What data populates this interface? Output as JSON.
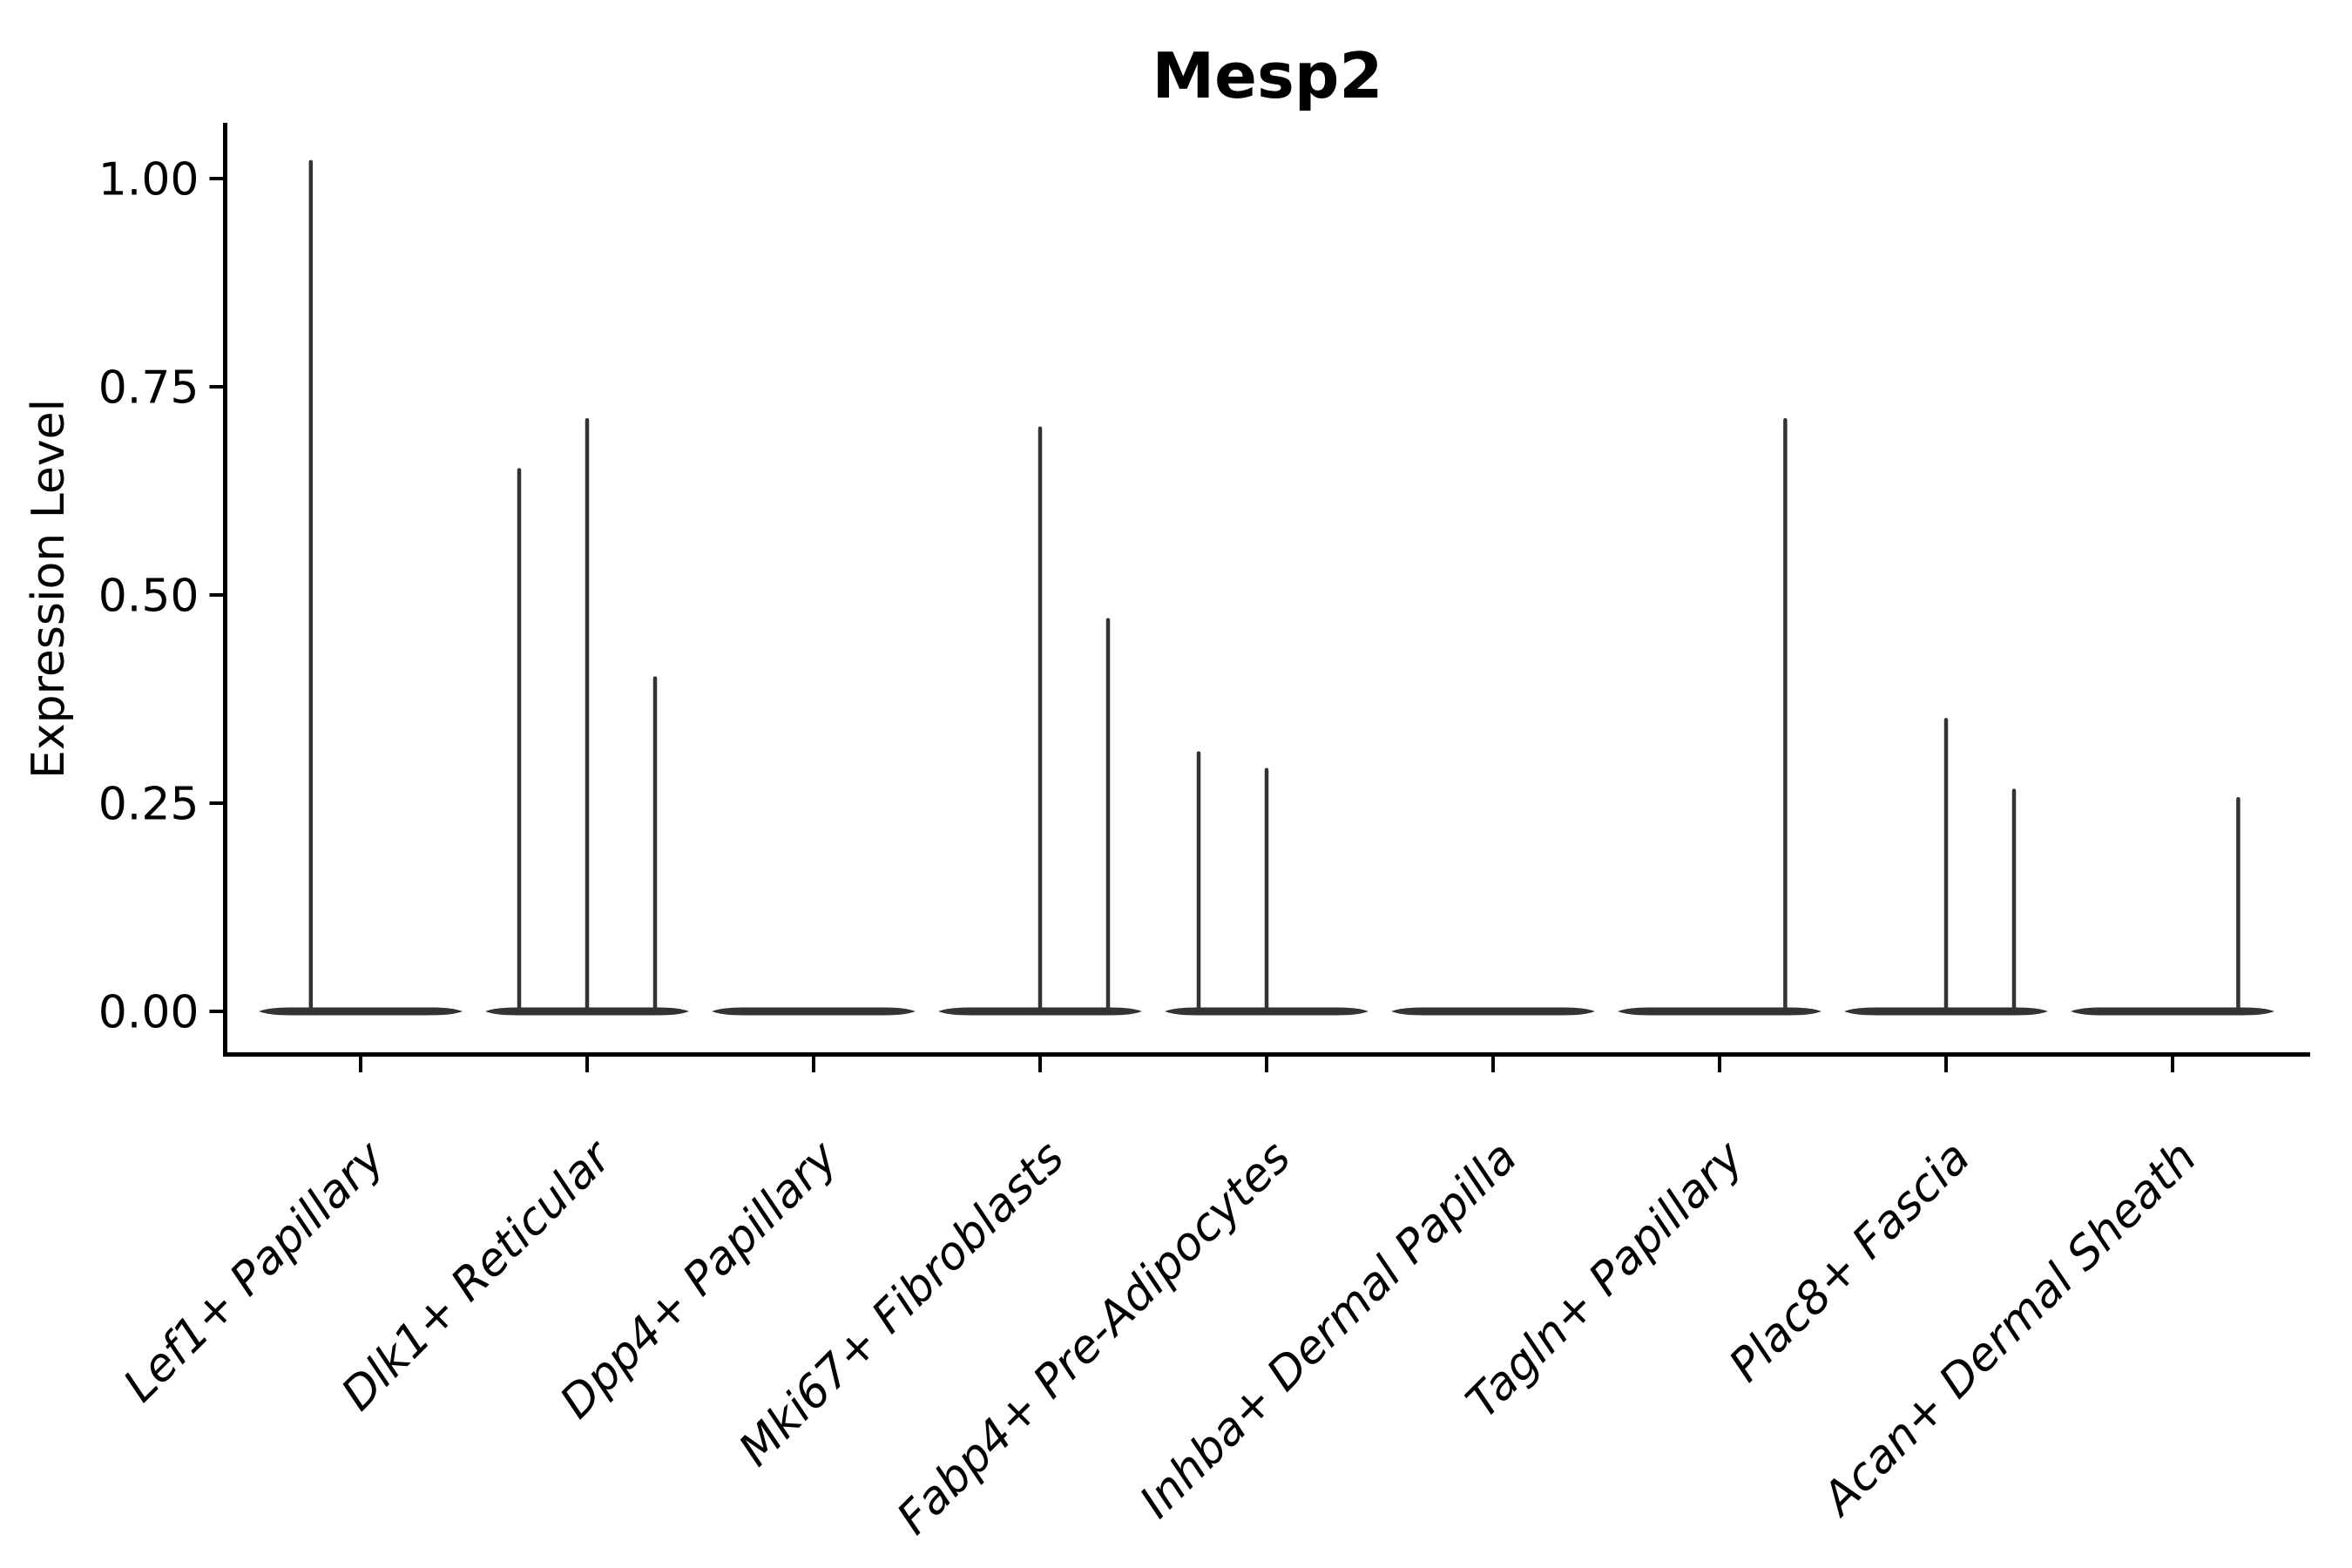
{
  "page": {
    "background": "#ffffff",
    "description": "Violin plot of gene expression per cell type; almost all density collapsed at 0 with thin vertical density spikes"
  },
  "chart_data": {
    "type": "violin",
    "title": "Mesp2",
    "xlabel": "",
    "ylabel": "Expression Level",
    "ylim": [
      -0.05,
      1.07
    ],
    "grid": false,
    "legend": false,
    "x_tick_label_style": "italic, rotated 45 degrees, right-anchored",
    "colors": {
      "violin": "#333333",
      "axis": "#000000",
      "text": "#000000",
      "background": "#ffffff"
    },
    "y_ticks": [
      {
        "value": 1.0,
        "label": "1.00"
      },
      {
        "value": 0.75,
        "label": "0.75"
      },
      {
        "value": 0.5,
        "label": "0.50"
      },
      {
        "value": 0.25,
        "label": "0.25"
      },
      {
        "value": 0.0,
        "label": "0.00"
      }
    ],
    "categories": [
      {
        "label": "Lef1+ Papillary",
        "baseline_value": 0,
        "spikes": [
          {
            "offset": -0.22,
            "value": 1.02
          }
        ]
      },
      {
        "label": "Dlk1+ Reticular",
        "baseline_value": 0,
        "spikes": [
          {
            "offset": -0.3,
            "value": 0.65
          },
          {
            "offset": 0.0,
            "value": 0.71
          },
          {
            "offset": 0.3,
            "value": 0.4
          }
        ]
      },
      {
        "label": "Dpp4+ Papillary",
        "baseline_value": 0,
        "spikes": []
      },
      {
        "label": "Mki67+ Fibroblasts",
        "baseline_value": 0,
        "spikes": [
          {
            "offset": 0.0,
            "value": 0.7
          },
          {
            "offset": 0.3,
            "value": 0.47
          }
        ]
      },
      {
        "label": "Fabp4+ Pre-Adipocytes",
        "baseline_value": 0,
        "spikes": [
          {
            "offset": -0.3,
            "value": 0.31
          },
          {
            "offset": 0.0,
            "value": 0.29
          }
        ]
      },
      {
        "label": "Inhba+ Dermal Papilla",
        "baseline_value": 0,
        "spikes": []
      },
      {
        "label": "Tagln+ Papillary",
        "baseline_value": 0,
        "spikes": [
          {
            "offset": 0.29,
            "value": 0.71
          }
        ]
      },
      {
        "label": "Plac8+ Fascia",
        "baseline_value": 0,
        "spikes": [
          {
            "offset": 0.0,
            "value": 0.35
          },
          {
            "offset": 0.3,
            "value": 0.265
          }
        ]
      },
      {
        "label": "Acan+ Dermal Sheath",
        "baseline_value": 0,
        "spikes": [
          {
            "offset": 0.29,
            "value": 0.255
          }
        ]
      }
    ]
  }
}
